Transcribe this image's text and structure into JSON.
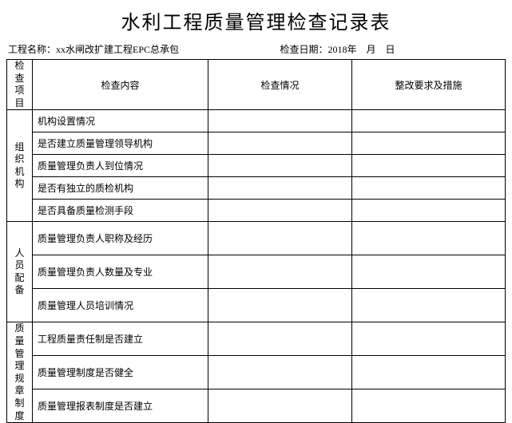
{
  "title": "水利工程质量管理检查记录表",
  "meta": {
    "project_label": "工程名称：",
    "project_value": "xx水闸改扩建工程EPC总承包",
    "date_label": "检查日期：",
    "date_value": "2018年　月　日"
  },
  "headers": {
    "category": "检查项目",
    "content": "检查内容",
    "status": "检查情况",
    "action": "整改要求及措施"
  },
  "sections": [
    {
      "name": "组织机构",
      "items": [
        "机构设置情况",
        "是否建立质量管理领导机构",
        "质量管理负责人到位情况",
        "是否有独立的质检机构",
        "是否具备质量检测手段"
      ]
    },
    {
      "name": "人员配备",
      "items": [
        "质量管理负责人职称及经历",
        "质量管理负责人数量及专业",
        "质量管理人员培训情况"
      ]
    },
    {
      "name": "质量管理规章制度",
      "items": [
        "工程质量责任制是否建立",
        "质量管理制度是否健全",
        "质量管理报表制度是否建立"
      ]
    }
  ],
  "colors": {
    "background": "#ffffff",
    "border": "#000000",
    "text": "#000000"
  }
}
